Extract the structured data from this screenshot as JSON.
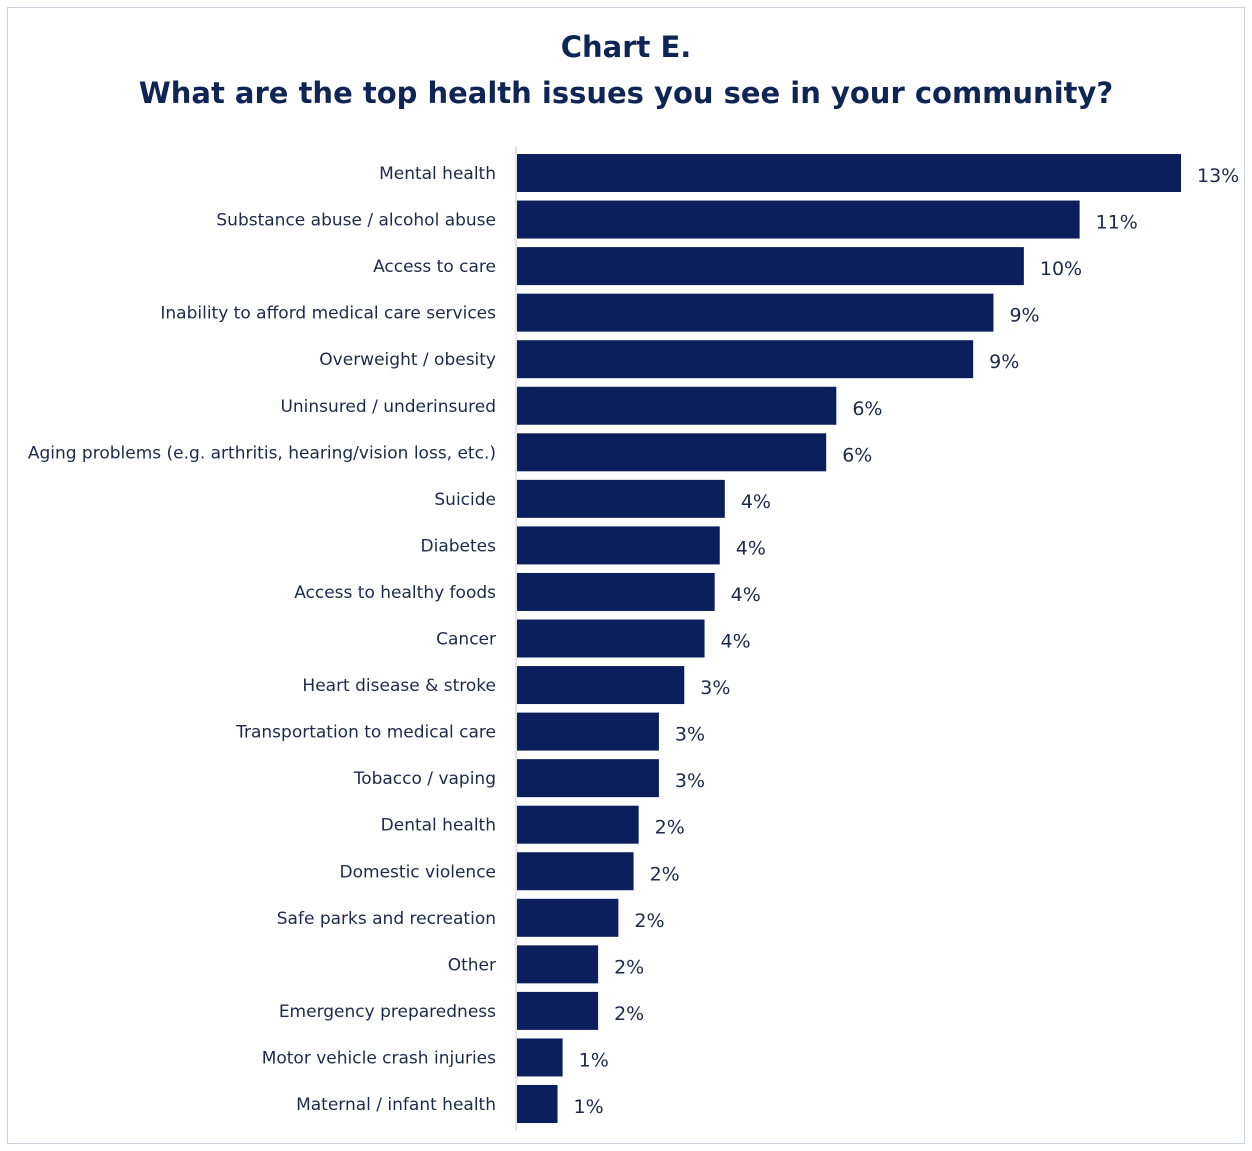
{
  "colors": {
    "bar": "#0b1f5c",
    "text": "#1c2a4a",
    "title": "#0f2555",
    "axis": "#c8c8c8"
  },
  "chart_data": {
    "type": "bar",
    "orientation": "horizontal",
    "title": "Chart E.",
    "subtitle": "What are the top health issues you see in your community?",
    "categories": [
      "Mental health",
      "Substance abuse / alcohol abuse",
      "Access to care",
      "Inability to afford medical care services",
      "Overweight / obesity",
      "Uninsured / underinsured",
      "Aging problems (e.g. arthritis, hearing/vision loss, etc.)",
      "Suicide",
      "Diabetes",
      "Access to healthy foods",
      "Cancer",
      "Heart disease & stroke",
      "Transportation to medical care",
      "Tobacco / vaping",
      "Dental health",
      "Domestic violence",
      "Safe parks and recreation",
      "Other",
      "Emergency preparedness",
      "Motor vehicle crash injuries",
      "Maternal / infant health"
    ],
    "values": [
      13.1,
      11.1,
      10.0,
      9.4,
      9.0,
      6.3,
      6.1,
      4.1,
      4.0,
      3.9,
      3.7,
      3.3,
      2.8,
      2.8,
      2.4,
      2.3,
      2.0,
      1.6,
      1.6,
      0.9,
      0.8
    ],
    "value_labels": [
      "13%",
      "11%",
      "10%",
      "9%",
      "9%",
      "6%",
      "6%",
      "4%",
      "4%",
      "4%",
      "4%",
      "3%",
      "3%",
      "3%",
      "2%",
      "2%",
      "2%",
      "2%",
      "2%",
      "1%",
      "1%"
    ],
    "xlim": [
      0,
      13.1
    ],
    "grid": false,
    "legend": "none"
  }
}
